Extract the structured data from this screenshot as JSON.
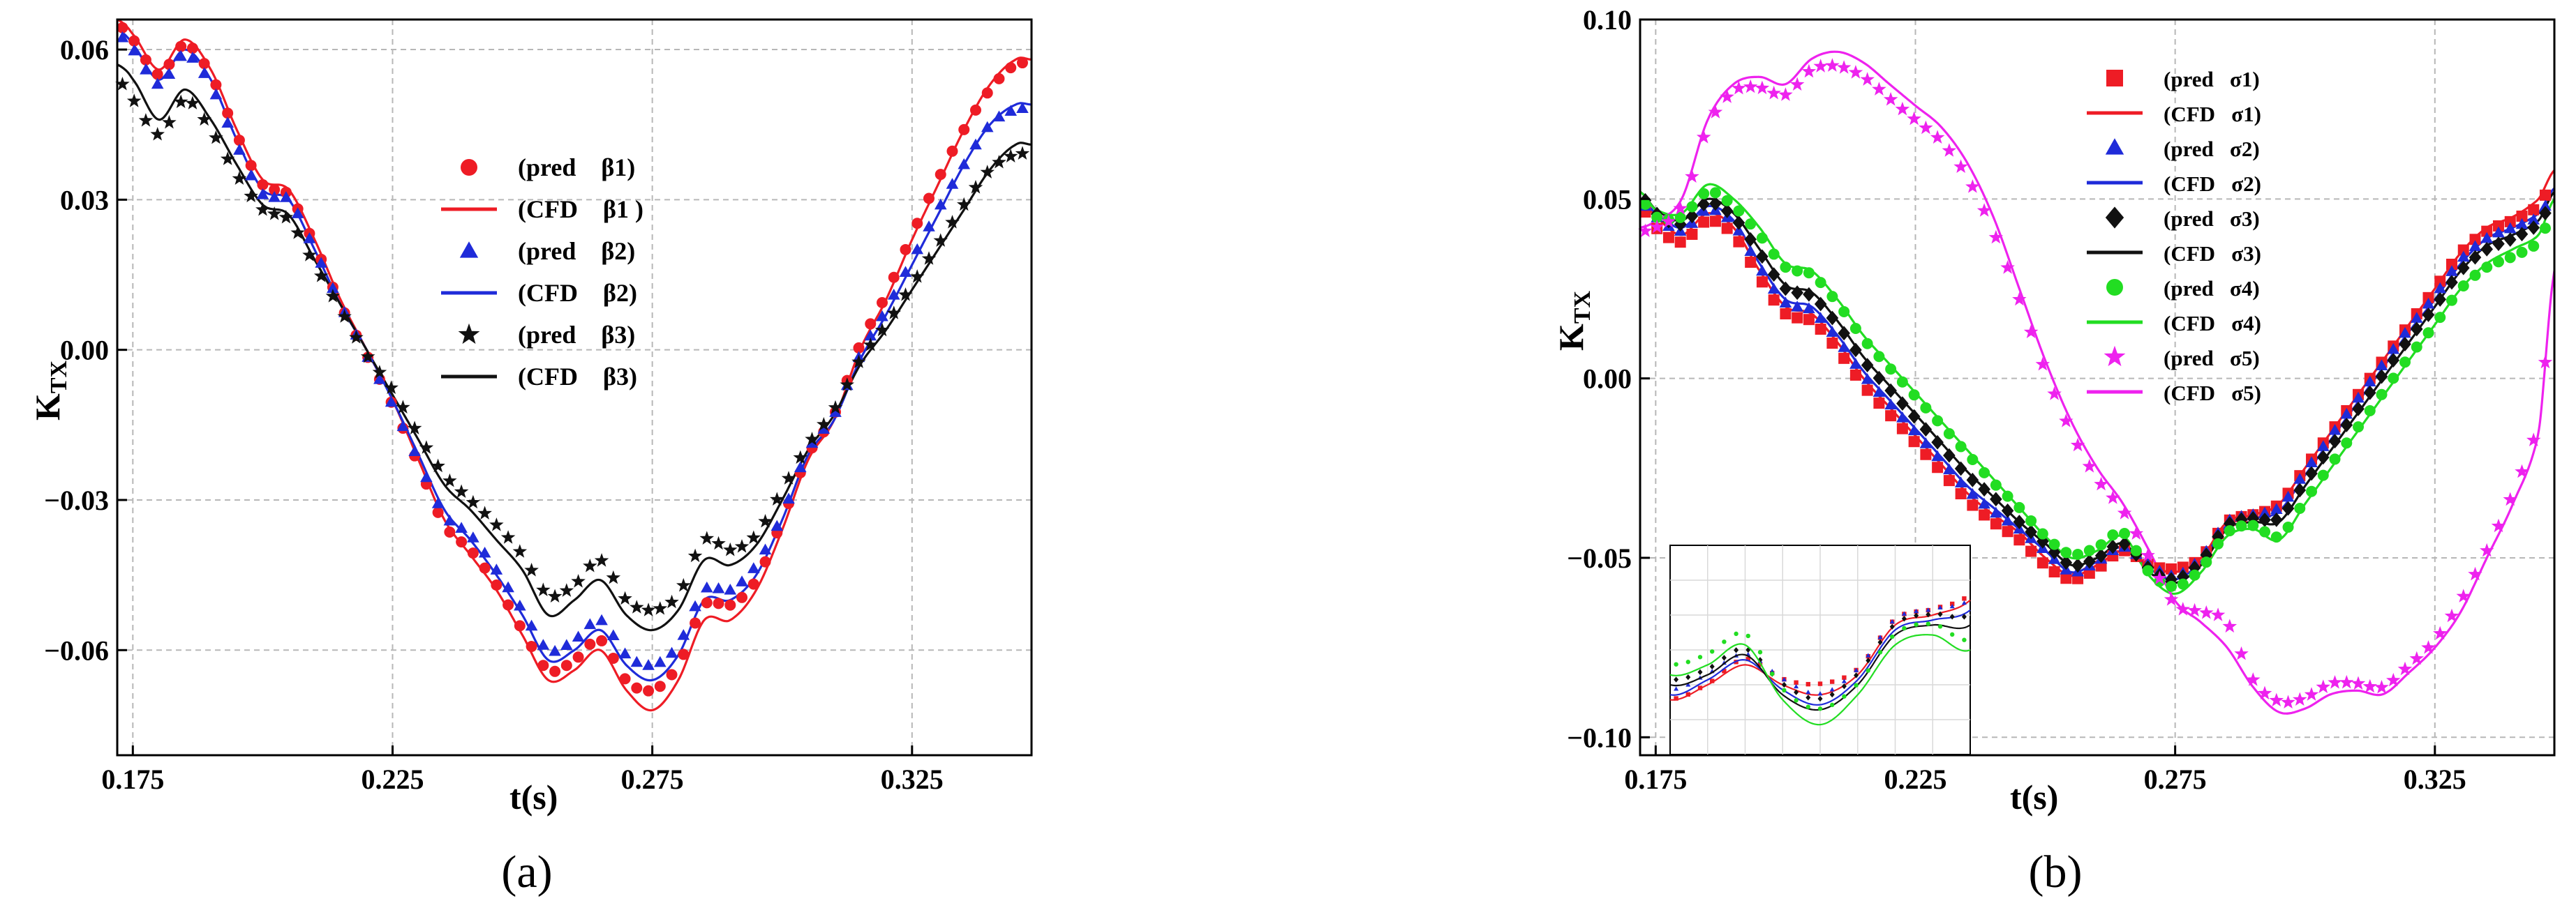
{
  "chart_data": [
    {
      "id": "a",
      "panel_label": "(a)",
      "type": "line",
      "title": "",
      "xlabel": "t(s)",
      "ylabel_main": "K",
      "ylabel_sub": "TX",
      "xlim": [
        0.172,
        0.348
      ],
      "ylim": [
        -0.081,
        0.066
      ],
      "xticks": [
        "0.175",
        "0.225",
        "0.275",
        "0.325"
      ],
      "xtick_values": [
        0.175,
        0.225,
        0.275,
        0.325
      ],
      "yticks": [
        "0.06",
        "0.03",
        "0.00",
        "−0.03",
        "−0.06"
      ],
      "ytick_values": [
        0.06,
        0.03,
        0.0,
        -0.03,
        -0.06
      ],
      "grid": true,
      "legend_position": "upper-center",
      "legend": [
        {
          "label": "(pred    β1)",
          "kind": "marker",
          "marker": "circle",
          "color": "#ee1c25"
        },
        {
          "label": "(CFD    β1 )",
          "kind": "line",
          "color": "#ee1c25"
        },
        {
          "label": "(pred    β2)",
          "kind": "marker",
          "marker": "triangle",
          "color": "#1f2bd9"
        },
        {
          "label": "(CFD    β2)",
          "kind": "line",
          "color": "#1f2bd9"
        },
        {
          "label": "(pred    β3)",
          "kind": "marker",
          "marker": "star",
          "color": "#111111"
        },
        {
          "label": "(CFD    β3)",
          "kind": "line",
          "color": "#111111"
        }
      ],
      "x": [
        0.172,
        0.175,
        0.18,
        0.185,
        0.19,
        0.195,
        0.2,
        0.205,
        0.21,
        0.215,
        0.22,
        0.225,
        0.23,
        0.235,
        0.24,
        0.245,
        0.25,
        0.255,
        0.26,
        0.265,
        0.27,
        0.275,
        0.28,
        0.285,
        0.29,
        0.295,
        0.3,
        0.305,
        0.31,
        0.315,
        0.32,
        0.325,
        0.33,
        0.335,
        0.34,
        0.345,
        0.348
      ],
      "series": [
        {
          "name": "CFD β1",
          "kind": "line",
          "color": "#ee1c25",
          "values": [
            0.066,
            0.063,
            0.056,
            0.062,
            0.056,
            0.044,
            0.034,
            0.032,
            0.022,
            0.01,
            0.0,
            -0.01,
            -0.022,
            -0.034,
            -0.041,
            -0.048,
            -0.057,
            -0.066,
            -0.064,
            -0.06,
            -0.068,
            -0.072,
            -0.066,
            -0.054,
            -0.054,
            -0.048,
            -0.036,
            -0.022,
            -0.014,
            0.0,
            0.01,
            0.022,
            0.033,
            0.044,
            0.053,
            0.058,
            0.058
          ]
        },
        {
          "name": "pred β1",
          "kind": "marker",
          "marker": "circle",
          "color": "#ee1c25",
          "values": [
            0.065,
            0.062,
            0.055,
            0.061,
            0.055,
            0.043,
            0.033,
            0.031,
            0.021,
            0.009,
            -0.001,
            -0.011,
            -0.023,
            -0.035,
            -0.04,
            -0.047,
            -0.056,
            -0.064,
            -0.062,
            -0.058,
            -0.066,
            -0.068,
            -0.063,
            -0.051,
            -0.051,
            -0.046,
            -0.034,
            -0.021,
            -0.013,
            0.001,
            0.011,
            0.023,
            0.034,
            0.044,
            0.052,
            0.057,
            0.057
          ]
        },
        {
          "name": "CFD β2",
          "kind": "line",
          "color": "#1f2bd9",
          "values": [
            0.064,
            0.061,
            0.054,
            0.06,
            0.054,
            0.042,
            0.032,
            0.03,
            0.02,
            0.009,
            0.0,
            -0.01,
            -0.021,
            -0.032,
            -0.038,
            -0.045,
            -0.053,
            -0.062,
            -0.06,
            -0.056,
            -0.063,
            -0.066,
            -0.061,
            -0.05,
            -0.05,
            -0.045,
            -0.034,
            -0.021,
            -0.014,
            -0.002,
            0.007,
            0.017,
            0.027,
            0.037,
            0.045,
            0.049,
            0.049
          ]
        },
        {
          "name": "pred β2",
          "kind": "marker",
          "marker": "triangle",
          "color": "#1f2bd9",
          "values": [
            0.063,
            0.06,
            0.053,
            0.059,
            0.053,
            0.041,
            0.031,
            0.03,
            0.02,
            0.009,
            -0.001,
            -0.011,
            -0.022,
            -0.033,
            -0.037,
            -0.044,
            -0.052,
            -0.06,
            -0.058,
            -0.054,
            -0.061,
            -0.063,
            -0.059,
            -0.048,
            -0.048,
            -0.043,
            -0.033,
            -0.02,
            -0.013,
            -0.001,
            0.008,
            0.018,
            0.028,
            0.037,
            0.045,
            0.048,
            0.048
          ]
        },
        {
          "name": "CFD β3",
          "kind": "line",
          "color": "#111111",
          "values": [
            0.057,
            0.054,
            0.046,
            0.052,
            0.046,
            0.037,
            0.029,
            0.027,
            0.018,
            0.009,
            0.0,
            -0.009,
            -0.018,
            -0.027,
            -0.032,
            -0.038,
            -0.044,
            -0.053,
            -0.05,
            -0.046,
            -0.053,
            -0.056,
            -0.052,
            -0.042,
            -0.043,
            -0.039,
            -0.03,
            -0.02,
            -0.013,
            -0.003,
            0.004,
            0.012,
            0.02,
            0.028,
            0.036,
            0.041,
            0.041
          ]
        },
        {
          "name": "pred β3",
          "kind": "marker",
          "marker": "star",
          "color": "#111111",
          "values": [
            0.054,
            0.05,
            0.043,
            0.05,
            0.044,
            0.035,
            0.028,
            0.026,
            0.017,
            0.008,
            -0.001,
            -0.008,
            -0.017,
            -0.025,
            -0.03,
            -0.035,
            -0.041,
            -0.049,
            -0.047,
            -0.042,
            -0.05,
            -0.052,
            -0.049,
            -0.038,
            -0.04,
            -0.037,
            -0.028,
            -0.019,
            -0.012,
            -0.002,
            0.005,
            0.013,
            0.021,
            0.029,
            0.036,
            0.039,
            0.039
          ]
        }
      ]
    },
    {
      "id": "b",
      "panel_label": "(b)",
      "type": "line",
      "title": "",
      "xlabel": "t(s)",
      "ylabel_main": "K",
      "ylabel_sub": "TX",
      "xlim": [
        0.172,
        0.348
      ],
      "ylim": [
        -0.105,
        0.1
      ],
      "xticks": [
        "0.175",
        "0.225",
        "0.275",
        "0.325"
      ],
      "xtick_values": [
        0.175,
        0.225,
        0.275,
        0.325
      ],
      "yticks": [
        "0.10",
        "0.05",
        "0.00",
        "−0.05",
        "−0.10"
      ],
      "ytick_values": [
        0.1,
        0.05,
        0.0,
        -0.05,
        -0.1
      ],
      "grid": true,
      "legend_position": "upper-center",
      "legend": [
        {
          "label": "(pred   σ1)",
          "kind": "marker",
          "marker": "square",
          "color": "#ee1c25"
        },
        {
          "label": "(CFD   σ1)",
          "kind": "line",
          "color": "#ee1c25"
        },
        {
          "label": "(pred   σ2)",
          "kind": "marker",
          "marker": "triangle",
          "color": "#1f2bd9"
        },
        {
          "label": "(CFD   σ2)",
          "kind": "line",
          "color": "#1f2bd9"
        },
        {
          "label": "(pred   σ3)",
          "kind": "marker",
          "marker": "diamond",
          "color": "#111111"
        },
        {
          "label": "(CFD   σ3)",
          "kind": "line",
          "color": "#111111"
        },
        {
          "label": "(pred   σ4)",
          "kind": "marker",
          "marker": "circle",
          "color": "#22dd22"
        },
        {
          "label": "(CFD   σ4)",
          "kind": "line",
          "color": "#22dd22"
        },
        {
          "label": "(pred   σ5)",
          "kind": "marker",
          "marker": "star",
          "color": "#ee22ee"
        },
        {
          "label": "(CFD   σ5)",
          "kind": "line",
          "color": "#ee22ee"
        }
      ],
      "x": [
        0.172,
        0.175,
        0.18,
        0.185,
        0.19,
        0.195,
        0.2,
        0.205,
        0.21,
        0.215,
        0.22,
        0.225,
        0.23,
        0.235,
        0.24,
        0.245,
        0.25,
        0.255,
        0.26,
        0.265,
        0.27,
        0.275,
        0.28,
        0.285,
        0.29,
        0.295,
        0.3,
        0.305,
        0.31,
        0.315,
        0.32,
        0.325,
        0.33,
        0.335,
        0.34,
        0.345,
        0.348
      ],
      "series": [
        {
          "name": "CFD σ1",
          "kind": "line",
          "color": "#ee1c25",
          "values": [
            0.05,
            0.045,
            0.04,
            0.046,
            0.042,
            0.03,
            0.02,
            0.018,
            0.01,
            0.0,
            -0.008,
            -0.016,
            -0.024,
            -0.032,
            -0.038,
            -0.043,
            -0.05,
            -0.055,
            -0.052,
            -0.048,
            -0.052,
            -0.054,
            -0.05,
            -0.04,
            -0.038,
            -0.035,
            -0.025,
            -0.015,
            -0.005,
            0.005,
            0.015,
            0.025,
            0.035,
            0.042,
            0.045,
            0.05,
            0.058
          ]
        },
        {
          "name": "pred σ1",
          "kind": "marker",
          "marker": "square",
          "color": "#ee1c25",
          "values": [
            0.048,
            0.042,
            0.038,
            0.044,
            0.04,
            0.028,
            0.018,
            0.016,
            0.008,
            -0.002,
            -0.01,
            -0.018,
            -0.026,
            -0.034,
            -0.04,
            -0.045,
            -0.052,
            -0.056,
            -0.053,
            -0.048,
            -0.052,
            -0.053,
            -0.05,
            -0.04,
            -0.038,
            -0.035,
            -0.025,
            -0.015,
            -0.005,
            0.005,
            0.015,
            0.025,
            0.035,
            0.041,
            0.044,
            0.048,
            0.055
          ]
        },
        {
          "name": "CFD σ2",
          "kind": "line",
          "color": "#1f2bd9",
          "values": [
            0.05,
            0.046,
            0.042,
            0.048,
            0.044,
            0.032,
            0.022,
            0.02,
            0.012,
            0.002,
            -0.006,
            -0.014,
            -0.022,
            -0.03,
            -0.036,
            -0.042,
            -0.048,
            -0.054,
            -0.051,
            -0.047,
            -0.053,
            -0.056,
            -0.051,
            -0.041,
            -0.039,
            -0.037,
            -0.027,
            -0.017,
            -0.007,
            0.003,
            0.013,
            0.022,
            0.032,
            0.039,
            0.042,
            0.046,
            0.053
          ]
        },
        {
          "name": "pred σ2",
          "kind": "marker",
          "marker": "triangle",
          "color": "#1f2bd9",
          "values": [
            0.049,
            0.045,
            0.041,
            0.047,
            0.043,
            0.031,
            0.021,
            0.019,
            0.011,
            0.001,
            -0.007,
            -0.015,
            -0.023,
            -0.031,
            -0.037,
            -0.042,
            -0.048,
            -0.054,
            -0.051,
            -0.047,
            -0.052,
            -0.055,
            -0.05,
            -0.04,
            -0.038,
            -0.036,
            -0.026,
            -0.016,
            -0.006,
            0.004,
            0.014,
            0.023,
            0.033,
            0.039,
            0.042,
            0.045,
            0.052
          ]
        },
        {
          "name": "CFD σ3",
          "kind": "line",
          "color": "#111111",
          "values": [
            0.052,
            0.047,
            0.044,
            0.05,
            0.046,
            0.036,
            0.026,
            0.024,
            0.016,
            0.006,
            -0.002,
            -0.01,
            -0.018,
            -0.026,
            -0.033,
            -0.04,
            -0.046,
            -0.052,
            -0.05,
            -0.046,
            -0.054,
            -0.057,
            -0.052,
            -0.042,
            -0.04,
            -0.04,
            -0.03,
            -0.02,
            -0.01,
            0.0,
            0.01,
            0.02,
            0.03,
            0.037,
            0.04,
            0.044,
            0.052
          ]
        },
        {
          "name": "pred σ3",
          "kind": "marker",
          "marker": "diamond",
          "color": "#111111",
          "values": [
            0.051,
            0.046,
            0.043,
            0.049,
            0.045,
            0.035,
            0.025,
            0.023,
            0.015,
            0.005,
            -0.003,
            -0.011,
            -0.019,
            -0.027,
            -0.033,
            -0.04,
            -0.046,
            -0.052,
            -0.05,
            -0.046,
            -0.053,
            -0.056,
            -0.051,
            -0.041,
            -0.039,
            -0.039,
            -0.029,
            -0.019,
            -0.009,
            0.001,
            0.011,
            0.02,
            0.03,
            0.036,
            0.039,
            0.043,
            0.05
          ]
        },
        {
          "name": "CFD σ4",
          "kind": "line",
          "color": "#22dd22",
          "values": [
            0.052,
            0.047,
            0.046,
            0.054,
            0.05,
            0.042,
            0.032,
            0.03,
            0.022,
            0.012,
            0.004,
            -0.004,
            -0.012,
            -0.02,
            -0.028,
            -0.036,
            -0.044,
            -0.05,
            -0.048,
            -0.044,
            -0.055,
            -0.06,
            -0.054,
            -0.044,
            -0.042,
            -0.045,
            -0.035,
            -0.025,
            -0.015,
            -0.005,
            0.005,
            0.015,
            0.025,
            0.032,
            0.036,
            0.04,
            0.05
          ]
        },
        {
          "name": "pred σ4",
          "kind": "marker",
          "marker": "circle",
          "color": "#22dd22",
          "values": [
            0.05,
            0.045,
            0.045,
            0.052,
            0.048,
            0.04,
            0.031,
            0.029,
            0.021,
            0.011,
            0.003,
            -0.005,
            -0.013,
            -0.021,
            -0.029,
            -0.036,
            -0.044,
            -0.049,
            -0.047,
            -0.043,
            -0.054,
            -0.058,
            -0.053,
            -0.043,
            -0.041,
            -0.044,
            -0.034,
            -0.024,
            -0.014,
            -0.004,
            0.006,
            0.015,
            0.025,
            0.031,
            0.034,
            0.038,
            0.047
          ]
        },
        {
          "name": "CFD σ5",
          "kind": "line",
          "color": "#ee22ee",
          "values": [
            0.042,
            0.044,
            0.05,
            0.072,
            0.082,
            0.084,
            0.082,
            0.089,
            0.091,
            0.088,
            0.082,
            0.076,
            0.07,
            0.06,
            0.045,
            0.025,
            0.005,
            -0.012,
            -0.025,
            -0.035,
            -0.048,
            -0.062,
            -0.068,
            -0.075,
            -0.086,
            -0.093,
            -0.092,
            -0.088,
            -0.087,
            -0.088,
            -0.082,
            -0.075,
            -0.065,
            -0.05,
            -0.035,
            -0.015,
            0.03
          ]
        },
        {
          "name": "pred σ5",
          "kind": "marker",
          "marker": "star",
          "color": "#ee22ee",
          "values": [
            0.041,
            0.042,
            0.048,
            0.07,
            0.08,
            0.081,
            0.079,
            0.086,
            0.087,
            0.084,
            0.078,
            0.072,
            0.066,
            0.056,
            0.041,
            0.022,
            0.002,
            -0.015,
            -0.028,
            -0.037,
            -0.05,
            -0.063,
            -0.065,
            -0.068,
            -0.084,
            -0.09,
            -0.089,
            -0.085,
            -0.085,
            -0.086,
            -0.08,
            -0.073,
            -0.062,
            -0.048,
            -0.032,
            -0.012,
            0.026
          ]
        }
      ]
    }
  ]
}
